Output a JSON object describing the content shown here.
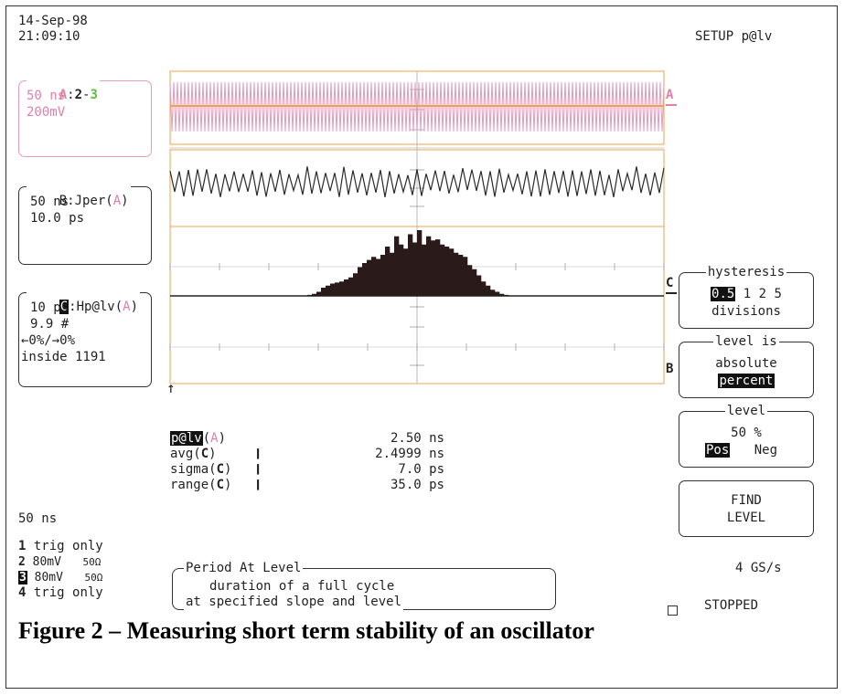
{
  "header": {
    "date": "14-Sep-98",
    "time": "21:09:10",
    "setup": "SETUP p@lv"
  },
  "channels": {
    "a": {
      "title_a": "A",
      "title_sep1": ":",
      "title_2": "2",
      "title_sep2": "-",
      "title_3": "3",
      "timebase": "50 ns",
      "volts": "200mV",
      "color": "#e37ea9"
    },
    "b": {
      "title_prefix": "B:Jper(",
      "title_src": "A",
      "title_suffix": ")",
      "timebase": "50 ns",
      "scale": "10.0 ps"
    },
    "c": {
      "title_letter": "C",
      "title_prefix": ":Hp@lv(",
      "title_src": "A",
      "title_suffix": ")",
      "bin": "10 ps",
      "count": "9.9 #",
      "limits": "←0%/→0%",
      "inside": "inside 1191"
    }
  },
  "trace_labels": {
    "a": "A",
    "c": "C",
    "b": "B"
  },
  "measurements": [
    {
      "name": "p@lv",
      "src": "A",
      "marker": "",
      "value": "2.50 ns"
    },
    {
      "name": "avg",
      "src": "C",
      "marker": "❙",
      "value": "2.4999 ns"
    },
    {
      "name": "sigma",
      "src": "C",
      "marker": "❙",
      "value": "7.0 ps"
    },
    {
      "name": "range",
      "src": "C",
      "marker": "❙",
      "value": "35.0 ps"
    }
  ],
  "menu": {
    "hysteresis": {
      "title": "hysteresis",
      "selected": "0.5",
      "options": "1 2 5",
      "unit": "divisions"
    },
    "level_is": {
      "title": "level is",
      "option1": "absolute",
      "option2_selected": "percent"
    },
    "level": {
      "title": "level",
      "value": "50 %",
      "pos_selected": "Pos",
      "neg": "Neg"
    },
    "find": {
      "line1": "FIND",
      "line2": "LEVEL"
    }
  },
  "bottom": {
    "timebase": "50 ns",
    "ch1_num": "1",
    "ch1": "trig only",
    "ch2_num": "2",
    "ch2_v": "80mV",
    "ch2_z": "50Ω",
    "ch3_num": "3",
    "ch3_v": "80mV",
    "ch3_z": "50Ω",
    "ch4_num": "4",
    "ch4": "trig only",
    "sample_rate": "4 GS/s",
    "status": "STOPPED"
  },
  "help": {
    "title": "Period At Level",
    "line1": "duration of a full cycle",
    "line2": "at specified slope and level"
  },
  "caption": "Figure 2 – Measuring short term stability of an oscillator",
  "histogram": {
    "values": [
      0,
      0,
      0,
      0,
      0,
      0,
      0,
      0,
      0,
      0,
      0,
      0,
      0,
      0,
      0,
      0,
      0,
      0,
      0,
      0,
      0,
      0,
      0,
      0,
      0,
      0,
      0,
      0,
      0,
      0,
      1,
      2,
      4,
      8,
      10,
      12,
      13,
      14,
      16,
      18,
      22,
      28,
      32,
      35,
      38,
      36,
      40,
      48,
      42,
      58,
      50,
      46,
      60,
      52,
      64,
      50,
      58,
      54,
      55,
      50,
      48,
      46,
      42,
      40,
      38,
      30,
      26,
      20,
      14,
      10,
      6,
      4,
      2,
      1,
      0,
      0,
      0,
      0,
      0,
      0,
      0,
      0,
      0,
      0,
      0,
      0,
      0,
      0,
      0,
      0,
      0,
      0,
      0,
      0,
      0,
      0,
      0,
      0,
      0,
      0,
      0,
      0,
      0,
      0,
      0,
      0,
      0,
      0
    ],
    "color": "#2a1a1a"
  }
}
